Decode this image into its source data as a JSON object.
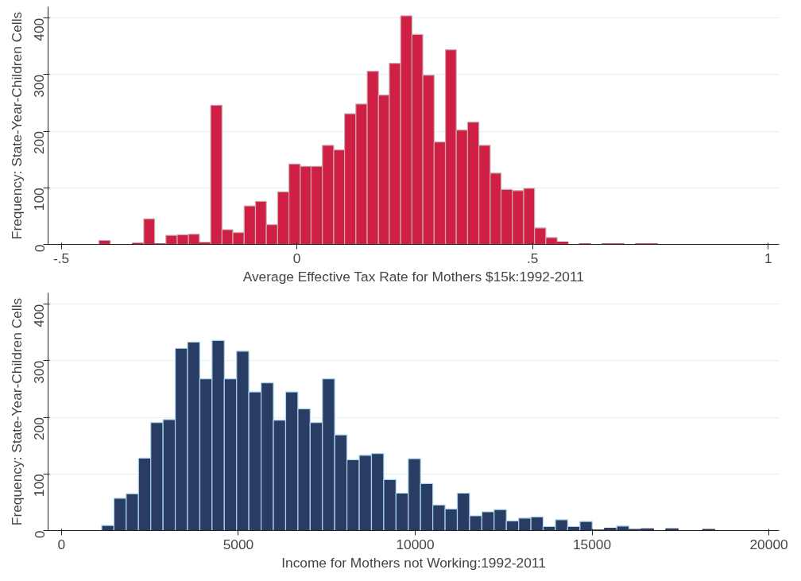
{
  "chart_data": [
    {
      "type": "histogram",
      "xlabel": "Average Effective Tax Rate for Mothers $15k:1992-2011",
      "ylabel": "Frequency: State-Year-Children Cells",
      "color": "#d01f44",
      "bins": [
        -0.42,
        -0.396,
        -0.373,
        -0.349,
        -0.325,
        -0.302,
        -0.278,
        -0.254,
        -0.23,
        -0.207,
        -0.183,
        -0.159,
        -0.136,
        -0.112,
        -0.088,
        -0.065,
        -0.041,
        -0.017,
        0.007,
        0.03,
        0.054,
        0.078,
        0.101,
        0.125,
        0.149,
        0.173,
        0.196,
        0.22,
        0.244,
        0.267,
        0.291,
        0.315,
        0.338,
        0.362,
        0.386,
        0.41,
        0.433,
        0.457,
        0.481,
        0.504,
        0.528,
        0.552,
        0.575,
        0.599,
        0.623,
        0.647,
        0.67,
        0.694,
        0.718,
        0.741,
        0.765
      ],
      "values": [
        7,
        0,
        0,
        2,
        45,
        1,
        16,
        17,
        18,
        3,
        246,
        26,
        21,
        68,
        76,
        35,
        93,
        142,
        138,
        138,
        175,
        167,
        231,
        248,
        306,
        264,
        320,
        404,
        371,
        299,
        181,
        344,
        202,
        216,
        175,
        126,
        97,
        95,
        99,
        29,
        12,
        4,
        0,
        1,
        0,
        1,
        1,
        0,
        1,
        1
      ],
      "xlim": [
        -0.528,
        1.023
      ],
      "xticks": [
        {
          "value": -0.5,
          "label": "-.5"
        },
        0,
        {
          "value": 0.5,
          "label": ".5"
        },
        1
      ],
      "ylim": [
        0,
        420
      ],
      "yticks": [
        0,
        100,
        200,
        300,
        400
      ],
      "grid": "y"
    },
    {
      "type": "histogram",
      "xlabel": "Income for Mothers not Working:1992-2011",
      "ylabel": "Frequency: State-Year-Children Cells",
      "color": "#283c64",
      "bins": [
        1137,
        1484,
        1830,
        2177,
        2524,
        2871,
        3217,
        3564,
        3911,
        4257,
        4604,
        4951,
        5297,
        5644,
        5991,
        6338,
        6684,
        7031,
        7378,
        7724,
        8071,
        8418,
        8764,
        9111,
        9458,
        9805,
        10151,
        10498,
        10845,
        11191,
        11538,
        11885,
        12231,
        12578,
        12925,
        13272,
        13618,
        13965,
        14312,
        14658,
        15005,
        15352,
        15698,
        16045,
        16392,
        16739,
        17085,
        17432,
        17779,
        18125,
        18472
      ],
      "values": [
        9,
        57,
        65,
        128,
        191,
        196,
        322,
        333,
        268,
        336,
        268,
        317,
        245,
        261,
        195,
        245,
        215,
        191,
        268,
        169,
        125,
        133,
        136,
        90,
        66,
        127,
        83,
        45,
        38,
        66,
        26,
        33,
        37,
        17,
        22,
        24,
        7,
        19,
        7,
        16,
        1,
        4,
        8,
        2,
        3,
        0,
        3,
        0,
        0,
        2
      ],
      "xlim": [
        -379,
        20290
      ],
      "xticks": [
        0,
        5000,
        10000,
        15000,
        20000
      ],
      "ylim": [
        0,
        420
      ],
      "yticks": [
        0,
        100,
        200,
        300,
        400
      ],
      "grid": "y"
    }
  ]
}
